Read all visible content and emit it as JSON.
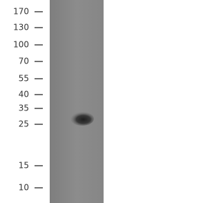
{
  "markers": [
    "170",
    "130",
    "100",
    "70",
    "55",
    "40",
    "35",
    "25",
    "15",
    "10"
  ]
}
